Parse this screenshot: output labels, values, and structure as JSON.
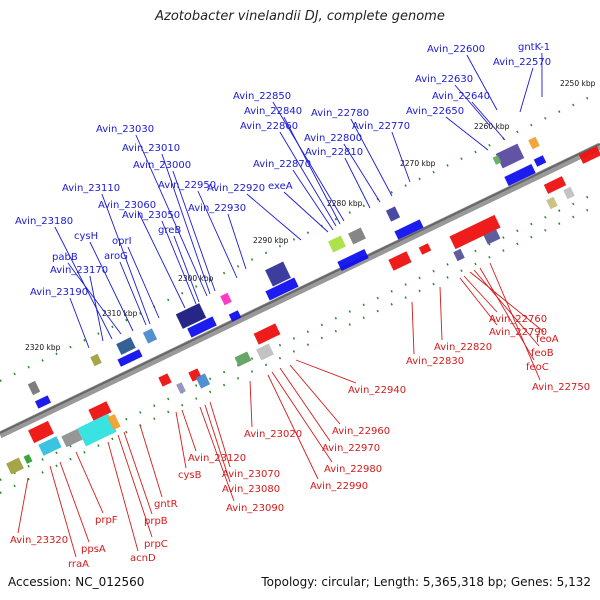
{
  "title": "Azotobacter vinelandii DJ, complete genome",
  "footer": {
    "accession": "Accession: NC_012560",
    "summary": "Topology: circular; Length: 5,365,318 bp; Genes: 5,132"
  },
  "colors": {
    "forward": "#1010ee",
    "reverse": "#ee1010",
    "label_forward": "#1a1ad6",
    "label_reverse": "#d61a1a",
    "backbone": "#888888",
    "ticks": "#2a8a2a"
  },
  "ticks": [
    "2250 kbp",
    "2260 kbp",
    "2270 kbp",
    "2280 kbp",
    "2290 kbp",
    "2300 kbp",
    "2310 kbp",
    "2320 kbp"
  ],
  "genes_top": [
    "gntK-1",
    "Avin_22570",
    "Avin_22600",
    "Avin_22630",
    "Avin_22640",
    "Avin_22650",
    "Avin_22770",
    "Avin_22780",
    "Avin_22800",
    "Avin_22810",
    "Avin_22850",
    "Avin_22840",
    "Avin_22860",
    "Avin_22870",
    "exeA",
    "Avin_22920",
    "Avin_22930",
    "Avin_22950",
    "Avin_23000",
    "Avin_23010",
    "Avin_23030",
    "Avin_23050",
    "greB",
    "Avin_23060",
    "oprI",
    "Avin_23110",
    "aroG",
    "cysH",
    "pabB",
    "Avin_23180",
    "Avin_23170",
    "Avin_23190"
  ],
  "genes_bottom": [
    "Avin_22750",
    "feoC",
    "feoB",
    "feoA",
    "Avin_22760",
    "Avin_22790",
    "Avin_22820",
    "Avin_22830",
    "Avin_22940",
    "Avin_22960",
    "Avin_22970",
    "Avin_22980",
    "Avin_22990",
    "Avin_23020",
    "Avin_23070",
    "Avin_23080",
    "Avin_23090",
    "Avin_23120",
    "cysB",
    "gntR",
    "prpB",
    "prpC",
    "acnD",
    "prpF",
    "ppsA",
    "rraA",
    "Avin_23320"
  ]
}
